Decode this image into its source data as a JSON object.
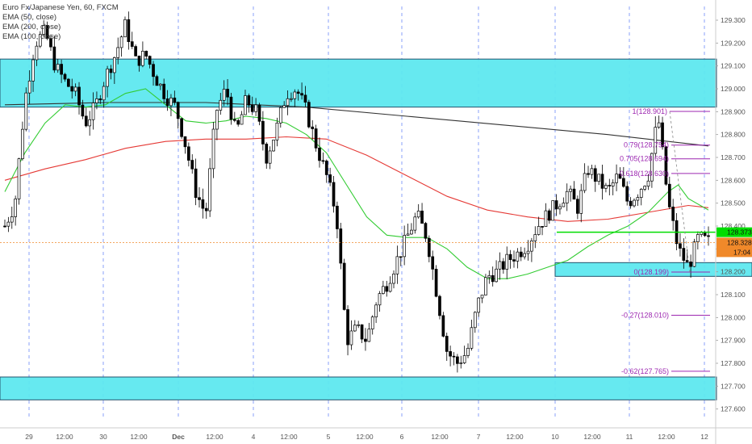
{
  "header": {
    "symbol_title": "Euro Fx/Japanese Yen, 60, FXCM",
    "indicators": [
      "EMA (50, close)",
      "EMA (200, close)",
      "EMA (100, close)"
    ]
  },
  "colors": {
    "zone": "#5ee8f0",
    "zone_border": "#1a4b66",
    "candle": "#000000",
    "ema50": "#33cc33",
    "ema100": "#e53935",
    "ema200": "#333333",
    "fib": "#9c27b0",
    "green_line": "#00dd00",
    "current_price": "#f0892a",
    "grid": "#4a6cf7"
  },
  "price_labels": {
    "green_level": "128.373",
    "current_price": "128.328",
    "countdown": "17:04"
  },
  "chart_data": {
    "type": "candlestick",
    "title": "Euro Fx/Japanese Yen, 60, FXCM",
    "ylim": [
      127.56,
      129.36
    ],
    "y_ticks": [
      "129.300",
      "129.200",
      "129.100",
      "129.000",
      "128.900",
      "128.800",
      "128.700",
      "128.600",
      "128.500",
      "128.400",
      "128.300",
      "128.200",
      "128.100",
      "128.000",
      "127.900",
      "127.800",
      "127.700",
      "127.600"
    ],
    "x_ticks": [
      "29",
      "12:00",
      "30",
      "12:00",
      "Dec",
      "12:00",
      "4",
      "12:00",
      "5",
      "12:00",
      "6",
      "12:00",
      "7",
      "12:00",
      "10",
      "12:00",
      "11",
      "12:00",
      "12"
    ],
    "day_separators": [
      "29",
      "30",
      "Dec",
      "4",
      "5",
      "6",
      "7",
      "10",
      "11",
      "12"
    ],
    "zones": [
      {
        "from": 128.92,
        "to": 129.13
      },
      {
        "from": 127.64,
        "to": 127.74
      },
      {
        "from": 128.18,
        "to": 128.24
      }
    ],
    "horizontal_levels": [
      {
        "name": "green_level",
        "value": 128.373
      },
      {
        "name": "current_price",
        "value": 128.328
      }
    ],
    "fibonacci": [
      {
        "label": "1(128.901)",
        "value": 128.901
      },
      {
        "label": "0.79(128.754)",
        "value": 128.754
      },
      {
        "label": "0.705(128.694)",
        "value": 128.694
      },
      {
        "label": "0.618(128.630)",
        "value": 128.63
      },
      {
        "label": "0(128.199)",
        "value": 128.199
      },
      {
        "label": "-0.27(128.010)",
        "value": 128.01
      },
      {
        "label": "-0.62(127.765)",
        "value": 127.765
      }
    ],
    "price_path": [
      [
        0,
        128.4
      ],
      [
        1,
        128.5
      ],
      [
        2,
        128.95
      ],
      [
        3,
        129.2
      ],
      [
        4,
        129.25
      ],
      [
        5,
        129.1
      ],
      [
        6,
        129.03
      ],
      [
        7,
        128.98
      ],
      [
        8,
        128.85
      ],
      [
        9,
        128.92
      ],
      [
        10,
        129.05
      ],
      [
        11,
        129.15
      ],
      [
        12,
        129.28
      ],
      [
        13,
        129.12
      ],
      [
        14,
        129.15
      ],
      [
        15,
        129.05
      ],
      [
        16,
        128.97
      ],
      [
        17,
        128.92
      ],
      [
        18,
        128.75
      ],
      [
        19,
        128.55
      ],
      [
        20,
        128.45
      ],
      [
        21,
        128.9
      ],
      [
        22,
        129.0
      ],
      [
        23,
        128.8
      ],
      [
        24,
        128.95
      ],
      [
        25,
        128.9
      ],
      [
        26,
        128.7
      ],
      [
        27,
        128.82
      ],
      [
        28,
        128.98
      ],
      [
        29,
        129.0
      ],
      [
        30,
        128.9
      ],
      [
        31,
        128.75
      ],
      [
        32,
        128.62
      ],
      [
        33,
        128.45
      ],
      [
        34,
        127.9
      ],
      [
        35,
        127.95
      ],
      [
        36,
        127.9
      ],
      [
        37,
        128.08
      ],
      [
        38,
        128.15
      ],
      [
        39,
        128.25
      ],
      [
        40,
        128.35
      ],
      [
        41,
        128.45
      ],
      [
        42,
        128.35
      ],
      [
        43,
        128.1
      ],
      [
        44,
        127.85
      ],
      [
        45,
        127.8
      ],
      [
        46,
        127.85
      ],
      [
        47,
        128.05
      ],
      [
        48,
        128.18
      ],
      [
        49,
        128.2
      ],
      [
        50,
        128.25
      ],
      [
        51,
        128.28
      ],
      [
        52,
        128.32
      ],
      [
        53,
        128.4
      ],
      [
        54,
        128.45
      ],
      [
        55,
        128.5
      ],
      [
        56,
        128.55
      ],
      [
        57,
        128.48
      ],
      [
        58,
        128.65
      ],
      [
        59,
        128.6
      ],
      [
        60,
        128.55
      ],
      [
        61,
        128.62
      ],
      [
        62,
        128.5
      ],
      [
        63,
        128.55
      ],
      [
        64,
        128.62
      ],
      [
        65,
        128.88
      ],
      [
        66,
        128.5
      ],
      [
        67,
        128.3
      ],
      [
        68,
        128.22
      ],
      [
        69,
        128.35
      ],
      [
        70,
        128.33
      ]
    ],
    "ema50": [
      [
        0,
        128.55
      ],
      [
        2,
        128.72
      ],
      [
        4,
        128.85
      ],
      [
        6,
        128.93
      ],
      [
        8,
        128.92
      ],
      [
        10,
        128.93
      ],
      [
        12,
        128.98
      ],
      [
        14,
        129.0
      ],
      [
        16,
        128.93
      ],
      [
        18,
        128.86
      ],
      [
        20,
        128.85
      ],
      [
        22,
        128.86
      ],
      [
        24,
        128.88
      ],
      [
        26,
        128.87
      ],
      [
        28,
        128.85
      ],
      [
        30,
        128.8
      ],
      [
        32,
        128.72
      ],
      [
        34,
        128.58
      ],
      [
        36,
        128.44
      ],
      [
        38,
        128.36
      ],
      [
        40,
        128.35
      ],
      [
        42,
        128.35
      ],
      [
        44,
        128.3
      ],
      [
        46,
        128.22
      ],
      [
        48,
        128.17
      ],
      [
        50,
        128.17
      ],
      [
        52,
        128.19
      ],
      [
        54,
        128.22
      ],
      [
        56,
        128.25
      ],
      [
        58,
        128.31
      ],
      [
        60,
        128.36
      ],
      [
        62,
        128.4
      ],
      [
        64,
        128.46
      ],
      [
        66,
        128.55
      ],
      [
        67,
        128.58
      ],
      [
        68,
        128.52
      ],
      [
        70,
        128.47
      ]
    ],
    "ema100": [
      [
        0,
        128.6
      ],
      [
        4,
        128.65
      ],
      [
        8,
        128.69
      ],
      [
        12,
        128.74
      ],
      [
        16,
        128.77
      ],
      [
        20,
        128.78
      ],
      [
        24,
        128.78
      ],
      [
        28,
        128.79
      ],
      [
        32,
        128.78
      ],
      [
        36,
        128.71
      ],
      [
        40,
        128.62
      ],
      [
        44,
        128.53
      ],
      [
        48,
        128.47
      ],
      [
        52,
        128.44
      ],
      [
        56,
        128.42
      ],
      [
        60,
        128.43
      ],
      [
        64,
        128.46
      ],
      [
        68,
        128.49
      ],
      [
        70,
        128.48
      ]
    ],
    "ema200": [
      [
        0,
        128.93
      ],
      [
        10,
        128.94
      ],
      [
        20,
        128.94
      ],
      [
        30,
        128.92
      ],
      [
        40,
        128.88
      ],
      [
        50,
        128.84
      ],
      [
        60,
        128.8
      ],
      [
        66,
        128.77
      ],
      [
        70,
        128.75
      ]
    ]
  }
}
